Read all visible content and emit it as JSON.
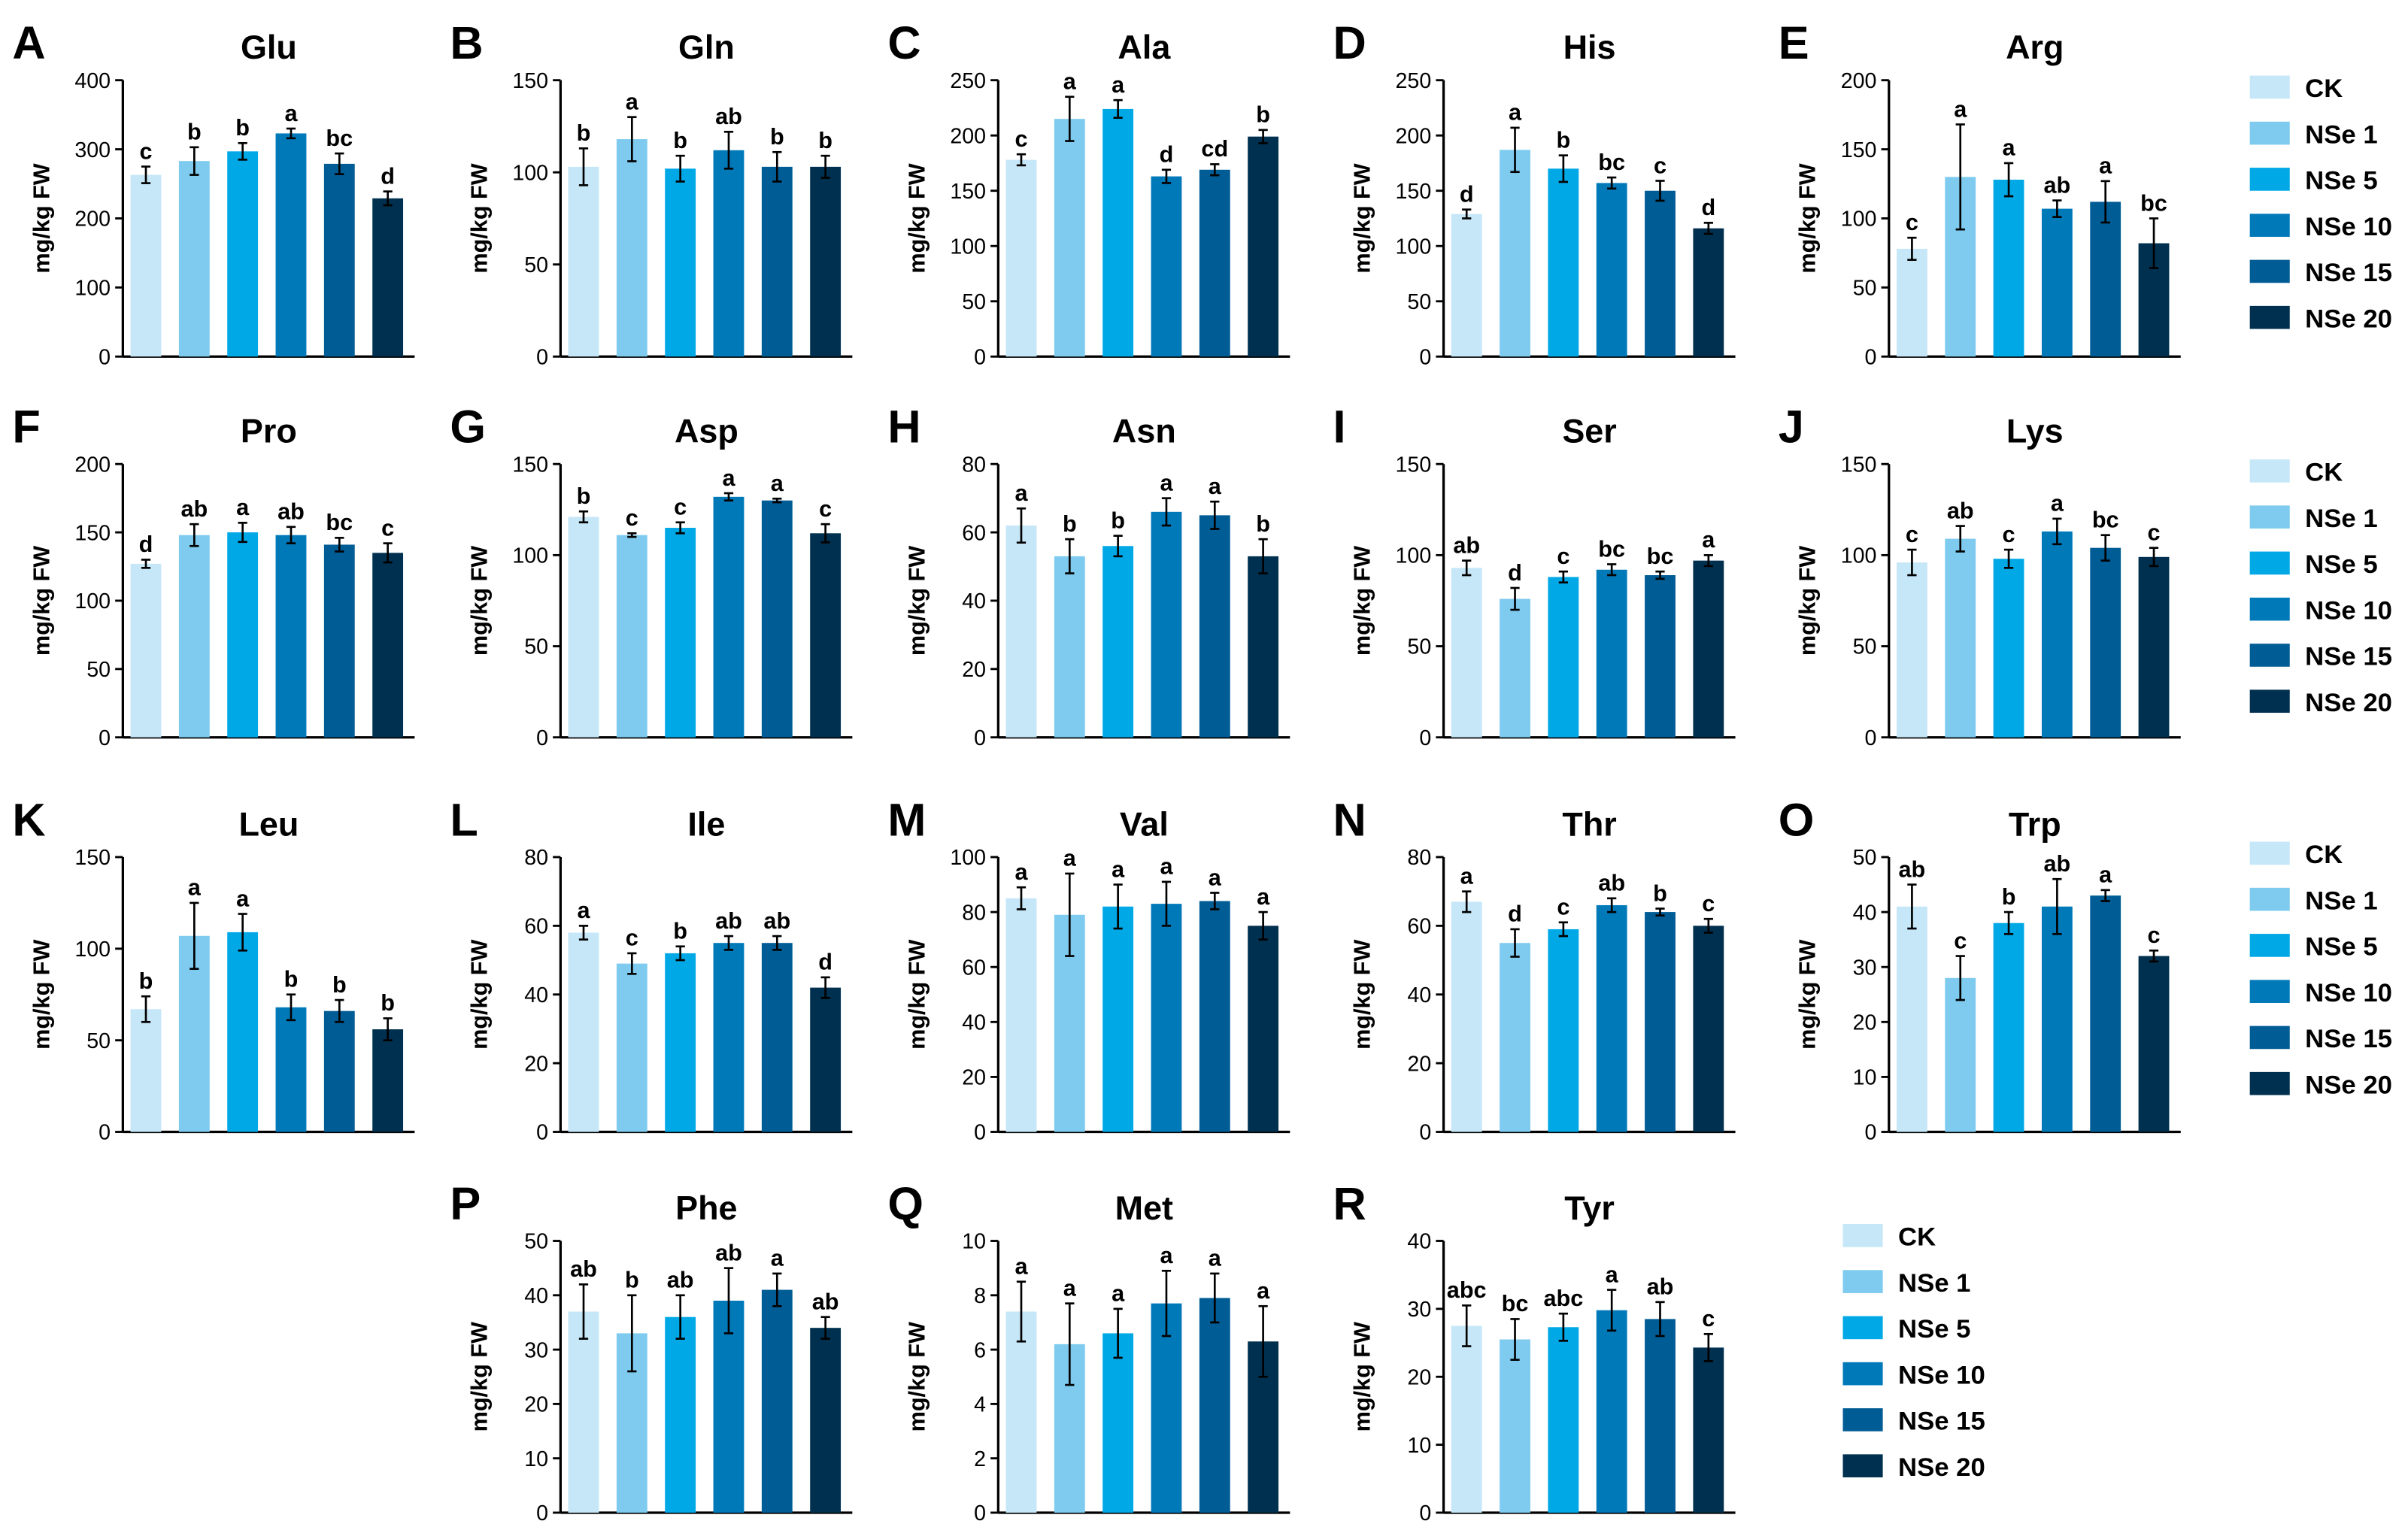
{
  "chart_data": {
    "type": "bar",
    "groups": [
      "CK",
      "NSe 1",
      "NSe 5",
      "NSe 10",
      "NSe 15",
      "NSe 20"
    ],
    "colors": [
      "#c6e7f8",
      "#7ecbef",
      "#00a8e6",
      "#0079b9",
      "#005c95",
      "#00304f"
    ],
    "ylabel": "mg/kg FW",
    "panels": [
      {
        "label": "A",
        "title": "Glu",
        "ylim": [
          0,
          400
        ],
        "ticks": [
          0,
          100,
          200,
          300,
          400
        ],
        "values": [
          263,
          283,
          297,
          323,
          279,
          229
        ],
        "errors": [
          12,
          20,
          12,
          7,
          15,
          10
        ],
        "sig": [
          "c",
          "b",
          "b",
          "a",
          "bc",
          "d"
        ]
      },
      {
        "label": "B",
        "title": "Gln",
        "ylim": [
          0,
          150
        ],
        "ticks": [
          0,
          50,
          100,
          150
        ],
        "values": [
          103,
          118,
          102,
          112,
          103,
          103
        ],
        "errors": [
          10,
          12,
          7,
          10,
          8,
          6
        ],
        "sig": [
          "b",
          "a",
          "b",
          "ab",
          "b",
          "b"
        ]
      },
      {
        "label": "C",
        "title": "Ala",
        "ylim": [
          0,
          250
        ],
        "ticks": [
          0,
          50,
          100,
          150,
          200,
          250
        ],
        "values": [
          178,
          215,
          224,
          163,
          169,
          199
        ],
        "errors": [
          5,
          20,
          8,
          6,
          5,
          6
        ],
        "sig": [
          "c",
          "a",
          "a",
          "d",
          "cd",
          "b"
        ]
      },
      {
        "label": "D",
        "title": "His",
        "ylim": [
          0,
          250
        ],
        "ticks": [
          0,
          50,
          100,
          150,
          200,
          250
        ],
        "values": [
          129,
          187,
          170,
          157,
          150,
          116
        ],
        "errors": [
          4,
          20,
          12,
          5,
          9,
          5
        ],
        "sig": [
          "d",
          "a",
          "b",
          "bc",
          "c",
          "d"
        ]
      },
      {
        "label": "E",
        "title": "Arg",
        "ylim": [
          0,
          200
        ],
        "ticks": [
          0,
          50,
          100,
          150,
          200
        ],
        "values": [
          78,
          130,
          128,
          107,
          112,
          82
        ],
        "errors": [
          8,
          38,
          12,
          6,
          15,
          18
        ],
        "sig": [
          "c",
          "a",
          "a",
          "ab",
          "a",
          "bc"
        ]
      },
      {
        "label": "F",
        "title": "Pro",
        "ylim": [
          0,
          200
        ],
        "ticks": [
          0,
          50,
          100,
          150,
          200
        ],
        "values": [
          127,
          148,
          150,
          148,
          141,
          135
        ],
        "errors": [
          3,
          8,
          7,
          6,
          5,
          7
        ],
        "sig": [
          "d",
          "ab",
          "a",
          "ab",
          "bc",
          "c"
        ]
      },
      {
        "label": "G",
        "title": "Asp",
        "ylim": [
          0,
          150
        ],
        "ticks": [
          0,
          50,
          100,
          150
        ],
        "values": [
          121,
          111,
          115,
          132,
          130,
          112
        ],
        "errors": [
          3,
          1,
          3,
          2,
          1,
          5
        ],
        "sig": [
          "b",
          "c",
          "c",
          "a",
          "a",
          "c"
        ]
      },
      {
        "label": "H",
        "title": "Asn",
        "ylim": [
          0,
          80
        ],
        "ticks": [
          0,
          20,
          40,
          60,
          80
        ],
        "values": [
          62,
          53,
          56,
          66,
          65,
          53
        ],
        "errors": [
          5,
          5,
          3,
          4,
          4,
          5
        ],
        "sig": [
          "a",
          "b",
          "b",
          "a",
          "a",
          "b"
        ]
      },
      {
        "label": "I",
        "title": "Ser",
        "ylim": [
          0,
          150
        ],
        "ticks": [
          0,
          50,
          100,
          150
        ],
        "values": [
          93,
          76,
          88,
          92,
          89,
          97
        ],
        "errors": [
          4,
          6,
          3,
          3,
          2,
          3
        ],
        "sig": [
          "ab",
          "d",
          "c",
          "bc",
          "bc",
          "a"
        ]
      },
      {
        "label": "J",
        "title": "Lys",
        "ylim": [
          0,
          150
        ],
        "ticks": [
          0,
          50,
          100,
          150
        ],
        "values": [
          96,
          109,
          98,
          113,
          104,
          99
        ],
        "errors": [
          7,
          7,
          5,
          7,
          7,
          5
        ],
        "sig": [
          "c",
          "ab",
          "c",
          "a",
          "bc",
          "c"
        ]
      },
      {
        "label": "K",
        "title": "Leu",
        "ylim": [
          0,
          150
        ],
        "ticks": [
          0,
          50,
          100,
          150
        ],
        "values": [
          67,
          107,
          109,
          68,
          66,
          56
        ],
        "errors": [
          7,
          18,
          10,
          7,
          6,
          6
        ],
        "sig": [
          "b",
          "a",
          "a",
          "b",
          "b",
          "b"
        ]
      },
      {
        "label": "L",
        "title": "Ile",
        "ylim": [
          0,
          80
        ],
        "ticks": [
          0,
          20,
          40,
          60,
          80
        ],
        "values": [
          58,
          49,
          52,
          55,
          55,
          42
        ],
        "errors": [
          2,
          3,
          2,
          2,
          2,
          3
        ],
        "sig": [
          "a",
          "c",
          "b",
          "ab",
          "ab",
          "d"
        ]
      },
      {
        "label": "M",
        "title": "Val",
        "ylim": [
          0,
          100
        ],
        "ticks": [
          0,
          20,
          40,
          60,
          80,
          100
        ],
        "values": [
          85,
          79,
          82,
          83,
          84,
          75
        ],
        "errors": [
          4,
          15,
          8,
          8,
          3,
          5
        ],
        "sig": [
          "a",
          "a",
          "a",
          "a",
          "a",
          "a"
        ]
      },
      {
        "label": "N",
        "title": "Thr",
        "ylim": [
          0,
          80
        ],
        "ticks": [
          0,
          20,
          40,
          60,
          80
        ],
        "values": [
          67,
          55,
          59,
          66,
          64,
          60
        ],
        "errors": [
          3,
          4,
          2,
          2,
          1,
          2
        ],
        "sig": [
          "a",
          "d",
          "c",
          "ab",
          "b",
          "c"
        ]
      },
      {
        "label": "O",
        "title": "Trp",
        "ylim": [
          0,
          50
        ],
        "ticks": [
          0,
          10,
          20,
          30,
          40,
          50
        ],
        "values": [
          41,
          28,
          38,
          41,
          43,
          32
        ],
        "errors": [
          4,
          4,
          2,
          5,
          1,
          1
        ],
        "sig": [
          "ab",
          "c",
          "b",
          "ab",
          "a",
          "c"
        ]
      },
      {
        "label": "P",
        "title": "Phe",
        "ylim": [
          0,
          50
        ],
        "ticks": [
          0,
          10,
          20,
          30,
          40,
          50
        ],
        "values": [
          37,
          33,
          36,
          39,
          41,
          34
        ],
        "errors": [
          5,
          7,
          4,
          6,
          3,
          2
        ],
        "sig": [
          "ab",
          "b",
          "ab",
          "ab",
          "a",
          "ab"
        ]
      },
      {
        "label": "Q",
        "title": "Met",
        "ylim": [
          0,
          10
        ],
        "ticks": [
          0,
          2,
          4,
          6,
          8,
          10
        ],
        "values": [
          7.4,
          6.2,
          6.6,
          7.7,
          7.9,
          6.3
        ],
        "errors": [
          1.1,
          1.5,
          0.9,
          1.2,
          0.9,
          1.3
        ],
        "sig": [
          "a",
          "a",
          "a",
          "a",
          "a",
          "a"
        ]
      },
      {
        "label": "R",
        "title": "Tyr",
        "ylim": [
          0,
          40
        ],
        "ticks": [
          0,
          10,
          20,
          30,
          40
        ],
        "values": [
          27.5,
          25.5,
          27.3,
          29.8,
          28.5,
          24.3
        ],
        "errors": [
          3,
          3,
          2,
          3,
          2.5,
          2
        ],
        "sig": [
          "abc",
          "bc",
          "abc",
          "a",
          "ab",
          "c"
        ]
      }
    ]
  }
}
